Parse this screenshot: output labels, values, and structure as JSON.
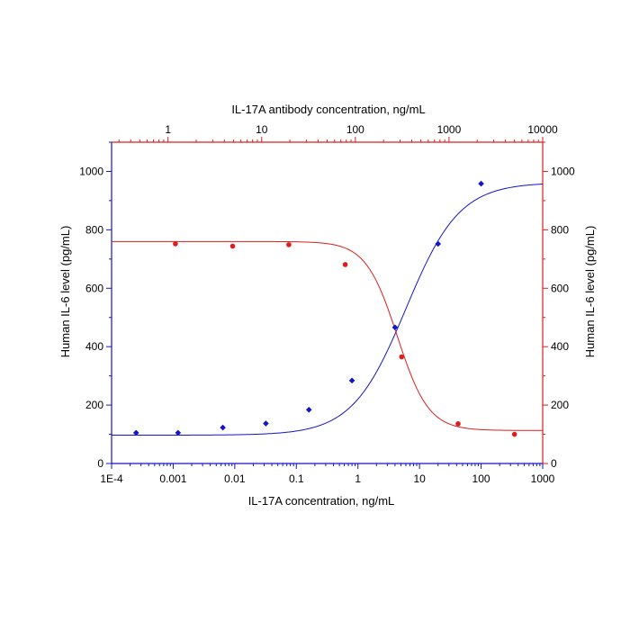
{
  "chart_data": {
    "type": "scatter",
    "title": "",
    "xlabel": "IL-17A  concentration, ng/mL",
    "x2label": "IL-17A antibody concentration, ng/mL",
    "ylabel": "Human IL-6 level (pg/mL)",
    "y2label": "Human IL-6 level (pg/mL)",
    "x_scale": "log",
    "xlim": [
      0.0001,
      1000
    ],
    "x2lim": [
      0.25,
      10000
    ],
    "ylim": [
      0,
      1100
    ],
    "x_ticks": [
      "1E-4",
      "0.001",
      "0.01",
      "0.1",
      "1",
      "10",
      "100",
      "1000"
    ],
    "x2_ticks": [
      "1",
      "10",
      "100",
      "1000",
      "10000"
    ],
    "y_ticks": [
      "0",
      "200",
      "400",
      "600",
      "800",
      "1000"
    ],
    "grid": false,
    "colors": {
      "left_axis": "#1414c8",
      "top_right_axis": "#dc1e1e",
      "series_1": "#1414c8",
      "series_2": "#dc1e1e"
    },
    "series": [
      {
        "axis": "bottom-left",
        "color": "#1414c8",
        "points": [
          {
            "x": 0.00025,
            "y": 105
          },
          {
            "x": 0.0012,
            "y": 105
          },
          {
            "x": 0.0064,
            "y": 123
          },
          {
            "x": 0.032,
            "y": 137
          },
          {
            "x": 0.16,
            "y": 184
          },
          {
            "x": 0.8,
            "y": 284
          },
          {
            "x": 4,
            "y": 466
          },
          {
            "x": 20,
            "y": 752
          },
          {
            "x": 100,
            "y": 958
          }
        ],
        "fit": {
          "bottom": 97,
          "top": 962,
          "ec50": 6,
          "hill": 1.0
        }
      },
      {
        "axis": "top-right",
        "color": "#dc1e1e",
        "points": [
          {
            "x": 1.2,
            "y": 752
          },
          {
            "x": 4.9,
            "y": 744
          },
          {
            "x": 19.5,
            "y": 749
          },
          {
            "x": 78,
            "y": 681
          },
          {
            "x": 312,
            "y": 365
          },
          {
            "x": 1250,
            "y": 136
          },
          {
            "x": 5000,
            "y": 100
          }
        ],
        "fit": {
          "bottom": 113,
          "top": 760,
          "ec50": 280,
          "hill": 2.6
        }
      }
    ]
  }
}
